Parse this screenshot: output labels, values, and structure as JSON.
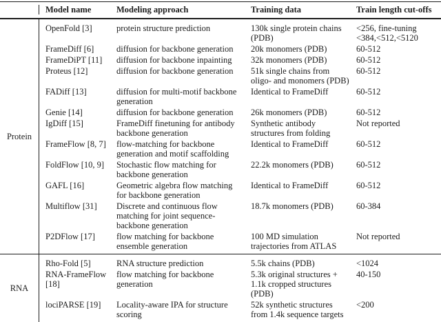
{
  "table": {
    "columns": [
      "Model name",
      "Modeling approach",
      "Training data",
      "Train length cut-offs"
    ],
    "sections": [
      {
        "group": "Protein",
        "rows": [
          {
            "model": "OpenFold [3]",
            "approach": "protein structure prediction",
            "training": "130k single protein chains (PDB)",
            "cutoff": "<256, fine-tuning <384,<512,<5120"
          },
          {
            "model": "FrameDiff [6]",
            "approach": "diffusion for backbone generation",
            "training": "20k monomers (PDB)",
            "cutoff": "60-512"
          },
          {
            "model": "FrameDiPT [11]",
            "approach": "diffusion for backbone inpainting",
            "training": "32k monomers (PDB)",
            "cutoff": "60-512"
          },
          {
            "model": "Proteus [12]",
            "approach": "diffusion for backbone generation",
            "training": "51k single chains from oligo- and monomers (PDB)",
            "cutoff": "60-512"
          },
          {
            "model": "FADiff [13]",
            "approach": "diffusion for multi-motif backbone generation",
            "training": "Identical to FrameDiff",
            "cutoff": "60-512"
          },
          {
            "model": "Genie [14]",
            "approach": "diffusion for backbone generation",
            "training": "26k monomers (PDB)",
            "cutoff": "60-512"
          },
          {
            "model": "IgDiff [15]",
            "approach": "FrameDiff finetuning for antibody backbone generation",
            "training": "Synthetic antibody structures from folding",
            "cutoff": "Not reported"
          },
          {
            "model": "FrameFlow [8, 7]",
            "approach": "flow-matching for backbone generation and motif scaffolding",
            "training": "Identical to FrameDiff",
            "cutoff": "60-512"
          },
          {
            "model": "FoldFlow [10, 9]",
            "approach": "Stochastic flow matching for backbone generation",
            "training": "22.2k monomers (PDB)",
            "cutoff": "60-512"
          },
          {
            "model": "GAFL [16]",
            "approach": "Geometric algebra flow matching for backbone generation",
            "training": "Identical to FrameDiff",
            "cutoff": "60-512"
          },
          {
            "model": "Multiflow [31]",
            "approach": "Discrete and continuous flow matching for joint sequence-backbone generation",
            "training": "18.7k monomers (PDB)",
            "cutoff": "60-384"
          },
          {
            "model": "P2DFlow [17]",
            "approach": "flow matching for backbone ensemble generation",
            "training": "100 MD simulation trajectories from ATLAS",
            "cutoff": "Not reported"
          }
        ]
      },
      {
        "group": "RNA",
        "rows": [
          {
            "model": "Rho-Fold [5]",
            "approach": "RNA structure prediction",
            "training": "5.5k chains (PDB)",
            "cutoff": "<1024"
          },
          {
            "model": "RNA-FrameFlow [18]",
            "approach": "flow matching for backbone generation",
            "training": "5.3k original structures + 1.1k cropped structures (PDB)",
            "cutoff": "40-150"
          },
          {
            "model": "lociPARSE [19]",
            "approach": "Locality-aware IPA for structure scoring",
            "training": "52k synthetic structures from 1.4k sequence targets",
            "cutoff": "<200"
          }
        ]
      }
    ]
  }
}
